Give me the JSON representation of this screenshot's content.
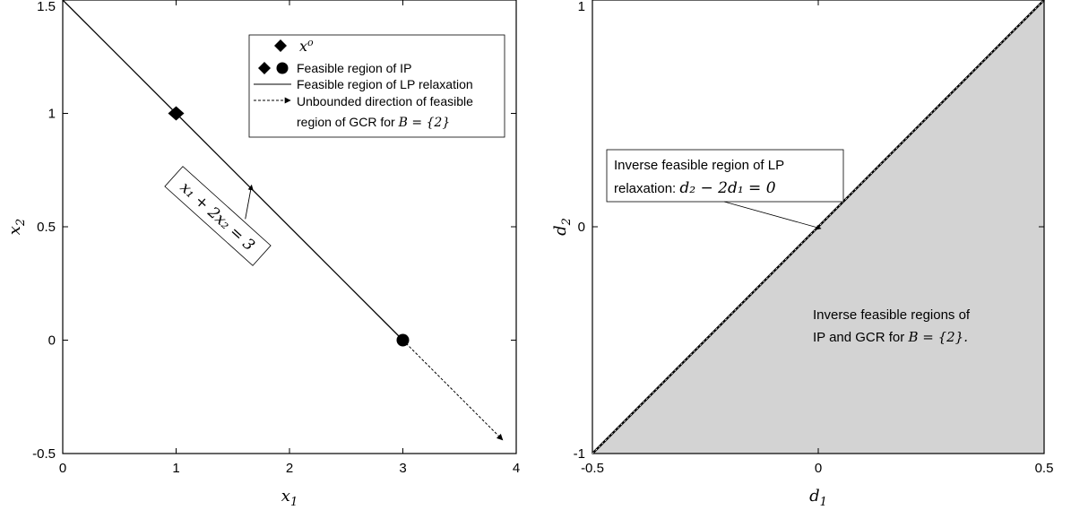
{
  "chart_data": [
    {
      "type": "line",
      "xlim": [
        0,
        4
      ],
      "ylim": [
        -0.5,
        1.5
      ],
      "xticks": [
        "0",
        "1",
        "2",
        "3",
        "4"
      ],
      "yticks": [
        "-0.5",
        "0",
        "0.5",
        "1",
        "1.5"
      ],
      "xlabel_base": "x",
      "xlabel_sub": "1",
      "ylabel_base": "x",
      "ylabel_sub": "2",
      "grid": false,
      "series": [
        {
          "name": "Feasible region of LP relaxation",
          "style": "solid",
          "x": [
            0,
            3
          ],
          "y": [
            1.5,
            0
          ]
        },
        {
          "name": "Unbounded direction of feasible region of GCR for B = {2}",
          "style": "dashed-arrow",
          "x": [
            3,
            3.88
          ],
          "y": [
            0,
            -0.44
          ]
        }
      ],
      "points": [
        {
          "name": "x^o",
          "marker": "diamond",
          "x": 1,
          "y": 1
        },
        {
          "name": "Feasible region of IP",
          "marker": "circle",
          "x": 3,
          "y": 0
        }
      ],
      "annotation": {
        "text": "x₁ + 2x₂ = 3",
        "arrow_from": [
          1.65,
          0.55
        ],
        "arrow_to": [
          1.65,
          0.68
        ]
      },
      "legend": {
        "placement": "top-right",
        "entries": [
          {
            "symbol": "diamond",
            "label": "x",
            "label_sup": "o"
          },
          {
            "symbol": "diamond+circle",
            "label": "Feasible region of IP"
          },
          {
            "symbol": "line",
            "label": "Feasible region of LP relaxation"
          },
          {
            "symbol": "dashed-arrow",
            "label": "Unbounded direction of feasible",
            "label2": "region of GCR for ",
            "label2_math": "B = {2}"
          }
        ]
      }
    },
    {
      "type": "area",
      "xlim": [
        -0.5,
        0.5
      ],
      "ylim": [
        -1,
        1
      ],
      "xticks": [
        "-0.5",
        "0",
        "0.5"
      ],
      "yticks": [
        "-1",
        "0",
        "1"
      ],
      "xlabel_base": "d",
      "xlabel_sub": "1",
      "ylabel_base": "d",
      "ylabel_sub": "2",
      "grid": false,
      "fill_color": "#d3d3d3",
      "series": [
        {
          "name": "Inverse feasible region of LP relaxation: d2 − 2d1 = 0",
          "x": [
            -0.5,
            0.5
          ],
          "y": [
            -1,
            1
          ]
        }
      ],
      "region": {
        "x": [
          -0.5,
          0.5,
          0.5
        ],
        "y": [
          -1,
          -1,
          1
        ]
      },
      "annotation_line": {
        "text1": "Inverse feasible region of LP",
        "text2": "relaxation: ",
        "text2_math": "d₂ − 2d₁ = 0",
        "arrow_to": [
          0.0,
          0.0
        ]
      },
      "annotation_region": {
        "text1": "Inverse feasible regions of",
        "text2": "IP and GCR for ",
        "text2_math": "B = {2}."
      }
    }
  ]
}
